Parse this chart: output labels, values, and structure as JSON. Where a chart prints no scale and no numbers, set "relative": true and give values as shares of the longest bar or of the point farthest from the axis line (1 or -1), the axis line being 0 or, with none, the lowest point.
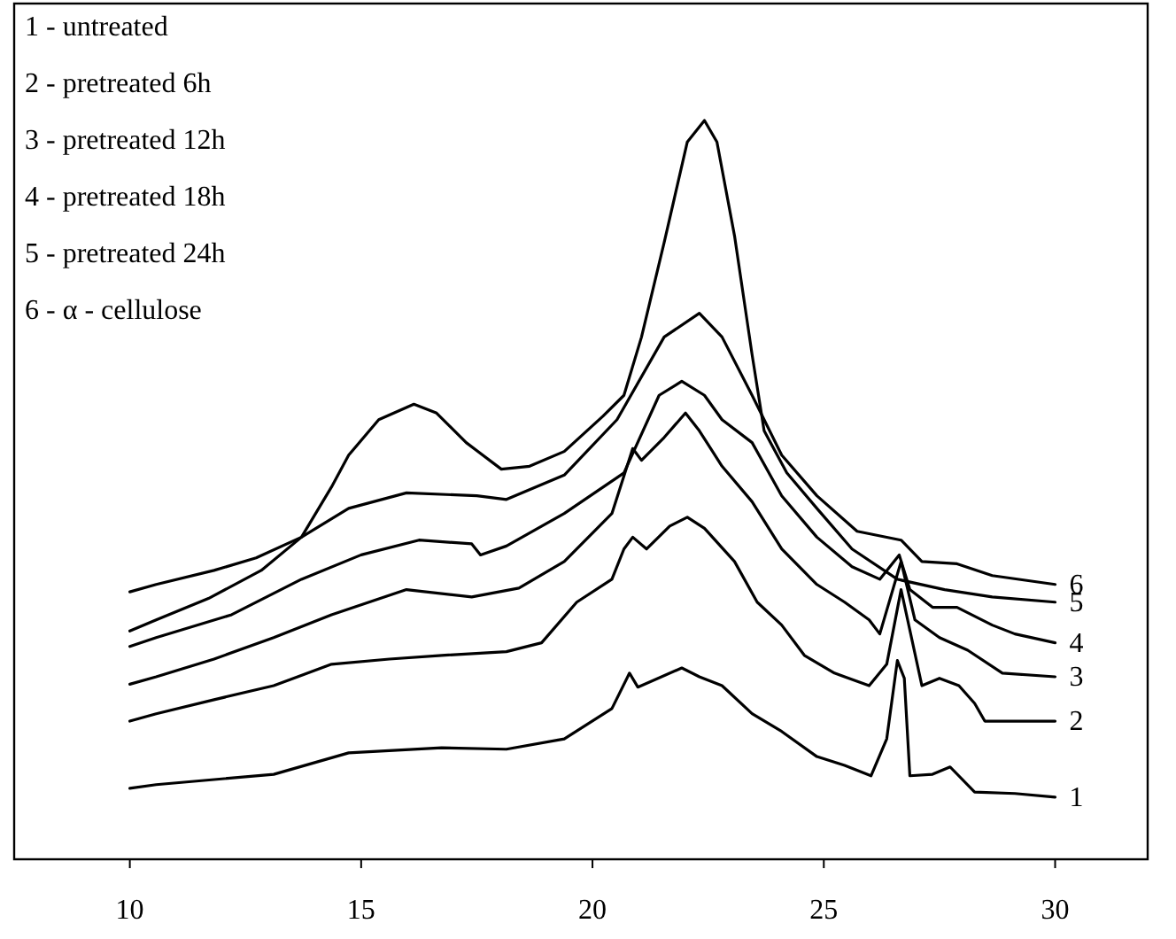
{
  "chart_data": {
    "type": "line",
    "relative": true,
    "xlim": [
      7.5,
      32
    ],
    "xticks": [
      10,
      15,
      20,
      25,
      30
    ],
    "annotations": [
      "1 - untreated",
      "2 - pretreated 6h",
      "3 - pretreated 12h",
      "4 - pretreated 18h",
      "5 - pretreated 24h",
      "6 - α - cellulose"
    ],
    "series": [
      {
        "name": "1",
        "color": "#000000",
        "x": [
          10,
          10.57,
          13.11,
          14.73,
          16.74,
          18.14,
          19.39,
          20.42,
          20.8,
          20.98,
          21.93,
          22.31,
          22.8,
          23.45,
          24.09,
          24.85,
          25.45,
          26.02,
          26.36,
          26.59,
          26.74,
          26.86,
          27.35,
          27.73,
          28.26,
          29.13,
          30
        ],
        "values": [
          0.096,
          0.101,
          0.115,
          0.144,
          0.151,
          0.149,
          0.163,
          0.204,
          0.252,
          0.233,
          0.259,
          0.247,
          0.235,
          0.197,
          0.173,
          0.139,
          0.127,
          0.113,
          0.163,
          0.269,
          0.245,
          0.113,
          0.115,
          0.125,
          0.091,
          0.089,
          0.084
        ]
      },
      {
        "name": "2",
        "color": "#000000",
        "x": [
          10,
          10.57,
          11.82,
          13.11,
          14.36,
          15.61,
          16.74,
          18.14,
          18.9,
          19.66,
          20.42,
          20.68,
          20.87,
          21.17,
          21.67,
          22.05,
          22.42,
          23.07,
          23.56,
          24.09,
          24.58,
          25.23,
          25.98,
          26.36,
          26.67,
          27.12,
          27.5,
          27.92,
          28.26,
          28.48,
          30
        ],
        "values": [
          0.187,
          0.197,
          0.216,
          0.235,
          0.264,
          0.271,
          0.276,
          0.281,
          0.293,
          0.348,
          0.379,
          0.42,
          0.436,
          0.42,
          0.451,
          0.463,
          0.448,
          0.403,
          0.348,
          0.317,
          0.276,
          0.252,
          0.235,
          0.264,
          0.365,
          0.235,
          0.245,
          0.235,
          0.211,
          0.187,
          0.187
        ]
      },
      {
        "name": "3",
        "color": "#000000",
        "x": [
          10,
          10.57,
          11.82,
          13.11,
          14.36,
          15.98,
          17.39,
          18.41,
          19.39,
          20.42,
          20.87,
          21.06,
          21.55,
          22.01,
          22.31,
          22.8,
          23.45,
          24.09,
          24.85,
          25.45,
          25.98,
          26.21,
          26.67,
          26.97,
          27.5,
          28.11,
          28.86,
          30
        ],
        "values": [
          0.237,
          0.247,
          0.271,
          0.3,
          0.331,
          0.365,
          0.355,
          0.367,
          0.403,
          0.468,
          0.556,
          0.54,
          0.571,
          0.604,
          0.58,
          0.532,
          0.484,
          0.42,
          0.372,
          0.348,
          0.324,
          0.305,
          0.403,
          0.324,
          0.3,
          0.283,
          0.252,
          0.247
        ]
      },
      {
        "name": "4",
        "color": "#000000",
        "x": [
          10,
          10.57,
          12.2,
          13.71,
          15.0,
          16.25,
          17.39,
          17.58,
          18.14,
          19.39,
          20.68,
          21.44,
          21.93,
          22.42,
          22.8,
          23.45,
          24.09,
          24.85,
          25.61,
          26.21,
          26.63,
          26.86,
          27.35,
          27.88,
          28.64,
          29.13,
          30
        ],
        "values": [
          0.288,
          0.3,
          0.331,
          0.379,
          0.412,
          0.432,
          0.427,
          0.412,
          0.424,
          0.468,
          0.523,
          0.628,
          0.647,
          0.628,
          0.595,
          0.564,
          0.492,
          0.436,
          0.396,
          0.379,
          0.412,
          0.365,
          0.341,
          0.341,
          0.317,
          0.305,
          0.293
        ]
      },
      {
        "name": "5",
        "color": "#000000",
        "x": [
          10,
          10.57,
          11.7,
          12.84,
          13.71,
          14.36,
          14.73,
          15.38,
          16.14,
          16.63,
          17.27,
          18.03,
          18.64,
          19.39,
          20.23,
          20.68,
          21.06,
          21.55,
          22.05,
          22.42,
          22.69,
          23.07,
          23.45,
          23.71,
          24.2,
          24.85,
          25.61,
          26.59,
          27.61,
          28.64,
          30
        ],
        "values": [
          0.309,
          0.324,
          0.353,
          0.391,
          0.436,
          0.504,
          0.547,
          0.595,
          0.616,
          0.604,
          0.564,
          0.528,
          0.532,
          0.552,
          0.6,
          0.628,
          0.707,
          0.835,
          0.971,
          1,
          0.971,
          0.844,
          0.683,
          0.58,
          0.523,
          0.475,
          0.42,
          0.379,
          0.365,
          0.355,
          0.348
        ]
      },
      {
        "name": "6",
        "color": "#000000",
        "x": [
          10,
          10.57,
          11.82,
          12.73,
          13.71,
          14.73,
          15.98,
          17.5,
          18.14,
          19.39,
          20.53,
          21.55,
          22.31,
          22.8,
          23.45,
          24.09,
          24.85,
          25.72,
          26.67,
          27.12,
          27.88,
          28.64,
          30
        ],
        "values": [
          0.362,
          0.372,
          0.391,
          0.408,
          0.436,
          0.475,
          0.496,
          0.492,
          0.487,
          0.52,
          0.595,
          0.707,
          0.739,
          0.707,
          0.628,
          0.547,
          0.492,
          0.444,
          0.432,
          0.403,
          0.4,
          0.384,
          0.372
        ]
      }
    ]
  }
}
